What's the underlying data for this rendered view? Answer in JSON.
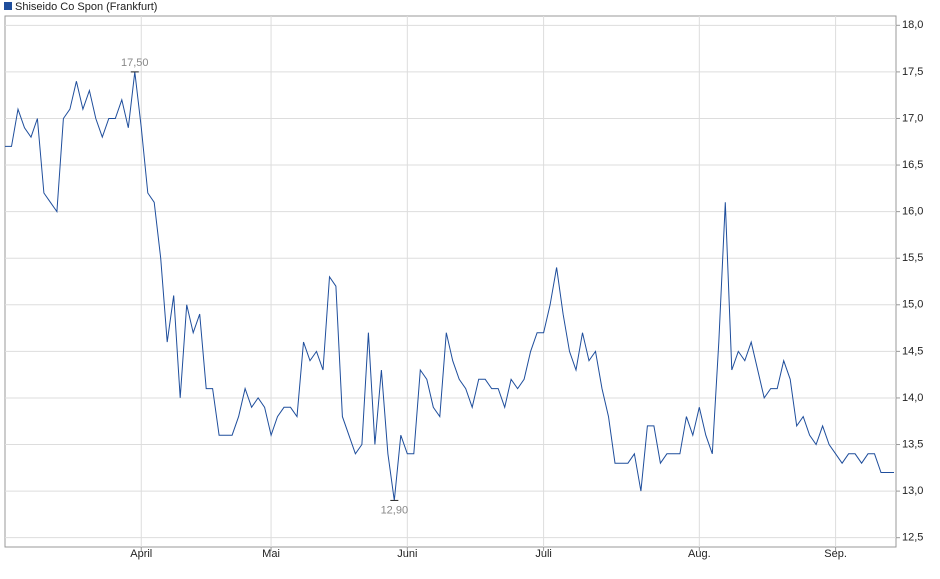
{
  "chart_data": {
    "type": "line",
    "categories": [
      null,
      null,
      null,
      null,
      null,
      null,
      null,
      null,
      null,
      null,
      null,
      null,
      null,
      null,
      null,
      null,
      null,
      null,
      null,
      null,
      null,
      "April",
      null,
      null,
      null,
      null,
      null,
      null,
      null,
      null,
      null,
      null,
      null,
      null,
      null,
      null,
      null,
      null,
      null,
      null,
      null,
      "Mai",
      null,
      null,
      null,
      null,
      null,
      null,
      null,
      null,
      null,
      null,
      null,
      null,
      null,
      null,
      null,
      null,
      null,
      null,
      null,
      null,
      "Juni",
      null,
      null,
      null,
      null,
      null,
      null,
      null,
      null,
      null,
      null,
      null,
      null,
      null,
      null,
      null,
      null,
      null,
      null,
      null,
      null,
      "Juli",
      null,
      null,
      null,
      null,
      null,
      null,
      null,
      null,
      null,
      null,
      null,
      null,
      null,
      null,
      null,
      null,
      null,
      null,
      null,
      null,
      null,
      null,
      null,
      "Aug.",
      null,
      null,
      null,
      null,
      null,
      null,
      null,
      null,
      null,
      null,
      null,
      null,
      null,
      null,
      null,
      null,
      null,
      null,
      null,
      null,
      "Sep.",
      null,
      null,
      null,
      null,
      null,
      null,
      null,
      null,
      null
    ],
    "series": [
      {
        "name": "Shiseido Co Spon (Frankfurt)",
        "color": "#1f4e9c",
        "values": [
          16.7,
          16.7,
          17.1,
          16.9,
          16.8,
          17.0,
          16.2,
          16.1,
          16.0,
          17.0,
          17.1,
          17.4,
          17.1,
          17.3,
          17.0,
          16.8,
          17.0,
          17.0,
          17.2,
          16.9,
          17.5,
          16.9,
          16.2,
          16.1,
          15.5,
          14.6,
          15.1,
          14.0,
          15.0,
          14.7,
          14.9,
          14.1,
          14.1,
          13.6,
          13.6,
          13.6,
          13.8,
          14.1,
          13.9,
          14.0,
          13.9,
          13.6,
          13.8,
          13.9,
          13.9,
          13.8,
          14.6,
          14.4,
          14.5,
          14.3,
          15.3,
          15.2,
          13.8,
          13.6,
          13.4,
          13.5,
          14.7,
          13.5,
          14.3,
          13.4,
          12.9,
          13.6,
          13.4,
          13.4,
          14.3,
          14.2,
          13.9,
          13.8,
          14.7,
          14.4,
          14.2,
          14.1,
          13.9,
          14.2,
          14.2,
          14.1,
          14.1,
          13.9,
          14.2,
          14.1,
          14.2,
          14.5,
          14.7,
          14.7,
          15.0,
          15.4,
          14.9,
          14.5,
          14.3,
          14.7,
          14.4,
          14.5,
          14.1,
          13.8,
          13.3,
          13.3,
          13.3,
          13.4,
          13.0,
          13.7,
          13.7,
          13.3,
          13.4,
          13.4,
          13.4,
          13.8,
          13.6,
          13.9,
          13.6,
          13.4,
          14.6,
          16.1,
          14.3,
          14.5,
          14.4,
          14.6,
          14.3,
          14.0,
          14.1,
          14.1,
          14.4,
          14.2,
          13.7,
          13.8,
          13.6,
          13.5,
          13.7,
          13.5,
          13.4,
          13.3,
          13.4,
          13.4,
          13.3,
          13.4,
          13.4,
          13.2,
          13.2,
          13.2
        ],
        "value_labels": [
          null,
          null,
          null,
          null,
          null,
          null,
          null,
          null,
          null,
          null,
          null,
          null,
          null,
          null,
          null,
          null,
          null,
          null,
          null,
          null,
          "17,50",
          null,
          null,
          null,
          null,
          null,
          null,
          null,
          null,
          null,
          null,
          null,
          null,
          null,
          null,
          null,
          null,
          null,
          null,
          null,
          null,
          null,
          null,
          null,
          null,
          null,
          null,
          null,
          null,
          null,
          null,
          null,
          null,
          null,
          null,
          null,
          null,
          null,
          null,
          null,
          "12,90",
          null,
          null,
          null,
          null,
          null,
          null,
          null,
          null,
          null,
          null,
          null,
          null,
          null,
          null,
          null,
          null,
          null,
          null,
          null,
          null,
          null,
          null,
          null,
          null,
          null,
          null,
          null,
          null,
          null,
          null,
          null,
          null,
          null,
          null,
          null,
          null,
          null,
          null,
          null,
          null,
          null,
          null,
          null,
          null,
          null,
          null,
          null,
          null,
          null,
          null,
          null,
          null,
          null,
          null,
          null,
          null,
          null,
          null,
          null,
          null,
          null,
          null,
          null,
          null,
          null,
          null,
          null,
          null,
          null,
          null,
          null,
          null,
          null,
          null,
          null,
          null,
          null
        ]
      }
    ],
    "ylim": [
      12.4,
      18.1
    ],
    "yticks": [
      {
        "value": 12.5,
        "label": "12,5"
      },
      {
        "value": 13,
        "label": "13,0"
      },
      {
        "value": 13.5,
        "label": "13,5"
      },
      {
        "value": 14,
        "label": "14,0"
      },
      {
        "value": 14.5,
        "label": "14,5"
      },
      {
        "value": 15,
        "label": "15,0"
      },
      {
        "value": 15.5,
        "label": "15,5"
      },
      {
        "value": 16,
        "label": "16,0"
      },
      {
        "value": 16.5,
        "label": "16,5"
      },
      {
        "value": 17,
        "label": "17,0"
      },
      {
        "value": 17.5,
        "label": "17,5"
      },
      {
        "value": 18,
        "label": "18,0"
      }
    ],
    "grid": true,
    "legend": "top-left"
  }
}
